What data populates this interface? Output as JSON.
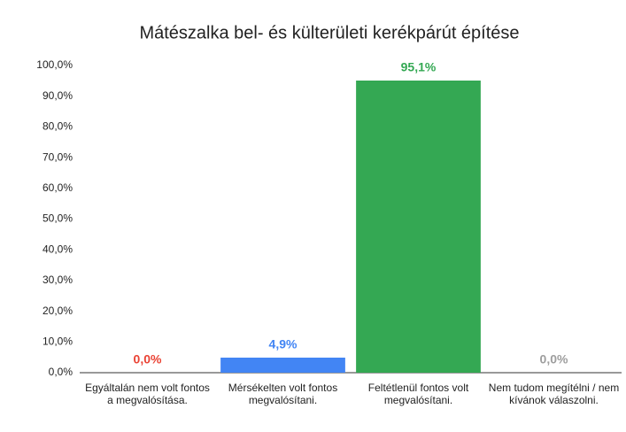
{
  "chart_data": {
    "type": "bar",
    "title": "Mátészalka bel- és külterületi kerékpárút építése",
    "categories": [
      "Egyáltalán nem volt fontos a megvalósítása.",
      "Mérsékelten volt fontos megvalósítani.",
      "Feltétlenül fontos volt megvalósítani.",
      "Nem tudom megítélni / nem kívánok válaszolni."
    ],
    "values": [
      0,
      4.9,
      95.1,
      0
    ],
    "value_labels": [
      "0,0%",
      "4,9%",
      "95,1%",
      "0,0%"
    ],
    "colors": [
      "#ea4335",
      "#4285f4",
      "#34a853",
      "#9e9e9e"
    ],
    "ylim": [
      0,
      100
    ],
    "yticks": [
      {
        "value": 0,
        "label": "0,0%"
      },
      {
        "value": 10,
        "label": "10,0%"
      },
      {
        "value": 20,
        "label": "20,0%"
      },
      {
        "value": 30,
        "label": "30,0%"
      },
      {
        "value": 40,
        "label": "40,0%"
      },
      {
        "value": 50,
        "label": "50,0%"
      },
      {
        "value": 60,
        "label": "60,0%"
      },
      {
        "value": 70,
        "label": "70,0%"
      },
      {
        "value": 80,
        "label": "80,0%"
      },
      {
        "value": 90,
        "label": "90,0%"
      },
      {
        "value": 100,
        "label": "100,0%"
      }
    ],
    "grid": false
  }
}
